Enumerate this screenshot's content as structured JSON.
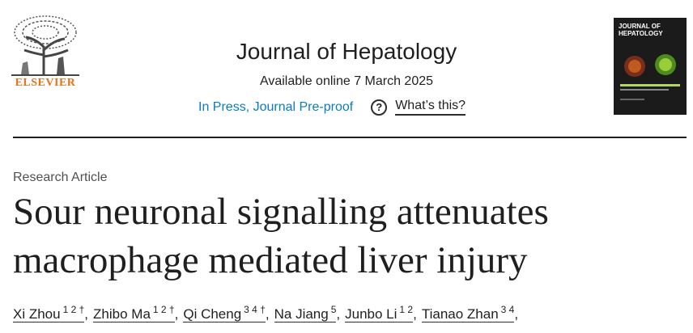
{
  "header": {
    "publisher": "ELSEVIER",
    "journal": "Journal of Hepatology",
    "availability": "Available online 7 March 2025",
    "status_link": "In Press, Journal Pre-proof",
    "help_icon": "?",
    "help_link": "What’s this?",
    "cover_title": "JOURNAL OF HEPATOLOGY"
  },
  "article": {
    "type": "Research Article",
    "title": "Sour neuronal signalling attenuates macrophage mediated liver injury",
    "separator": ",",
    "authors": [
      {
        "name": "Xi Zhou",
        "affiliations": "1 2 †"
      },
      {
        "name": "Zhibo Ma",
        "affiliations": "1 2 †"
      },
      {
        "name": "Qi Cheng",
        "affiliations": "3 4 †"
      },
      {
        "name": "Na Jiang",
        "affiliations": "5"
      },
      {
        "name": "Junbo Li",
        "affiliations": "1 2"
      },
      {
        "name": "Tianao Zhan",
        "affiliations": "3 4"
      }
    ]
  }
}
